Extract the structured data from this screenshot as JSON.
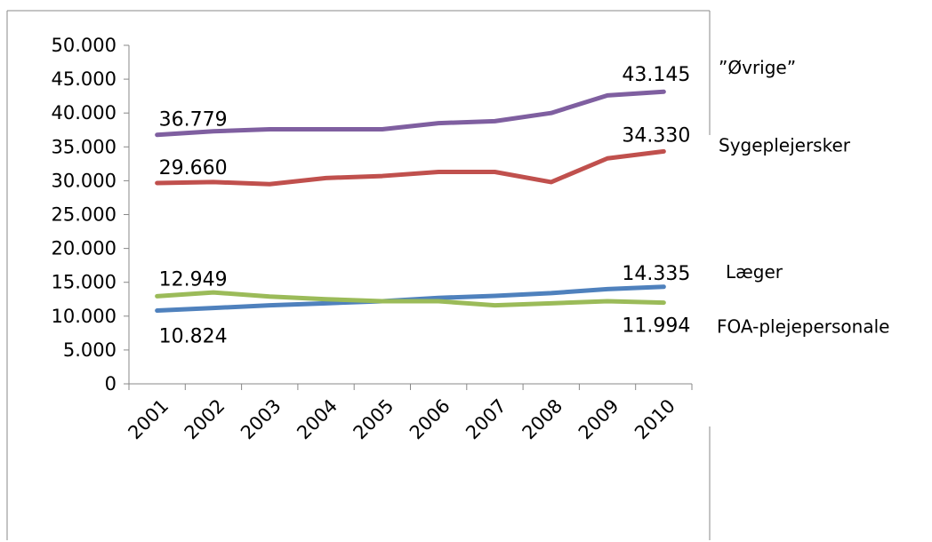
{
  "chart_data": {
    "type": "line",
    "title": "",
    "xlabel": "",
    "ylabel": "",
    "categories": [
      "2001",
      "2002",
      "2003",
      "2004",
      "2005",
      "2006",
      "2007",
      "2008",
      "2009",
      "2010"
    ],
    "ylim": [
      0,
      50000
    ],
    "yticks": [
      0,
      5000,
      10000,
      15000,
      20000,
      25000,
      30000,
      35000,
      40000,
      45000,
      50000
    ],
    "ytick_labels": [
      "0",
      "5.000",
      "10.000",
      "15.000",
      "20.000",
      "25.000",
      "30.000",
      "35.000",
      "40.000",
      "45.000",
      "50.000"
    ],
    "grid": false,
    "series": [
      {
        "name": "”Øvrige”",
        "color": "#7F5FA0",
        "values": [
          36779,
          37300,
          37600,
          37600,
          37600,
          38500,
          38800,
          40000,
          42600,
          43145
        ],
        "labels": [
          {
            "index": 0,
            "text": "36.779"
          },
          {
            "index": 9,
            "text": "43.145"
          }
        ]
      },
      {
        "name": "Sygeplejersker",
        "color": "#C0504D",
        "values": [
          29660,
          29800,
          29500,
          30400,
          30700,
          31300,
          31300,
          29800,
          33300,
          34330
        ],
        "labels": [
          {
            "index": 0,
            "text": "29.660"
          },
          {
            "index": 9,
            "text": "34.330"
          }
        ]
      },
      {
        "name": "Læger",
        "color": "#4F81BD",
        "values": [
          10824,
          11200,
          11600,
          11900,
          12200,
          12700,
          13000,
          13400,
          14000,
          14335
        ],
        "labels": [
          {
            "index": 0,
            "text": "10.824"
          },
          {
            "index": 9,
            "text": "14.335"
          }
        ]
      },
      {
        "name": "FOA-plejepersonale",
        "color": "#9BBB59",
        "values": [
          12949,
          13500,
          12900,
          12500,
          12200,
          12200,
          11600,
          11900,
          12200,
          11994
        ],
        "labels": [
          {
            "index": 0,
            "text": "12.949"
          },
          {
            "index": 9,
            "text": "11.994"
          }
        ]
      }
    ]
  }
}
